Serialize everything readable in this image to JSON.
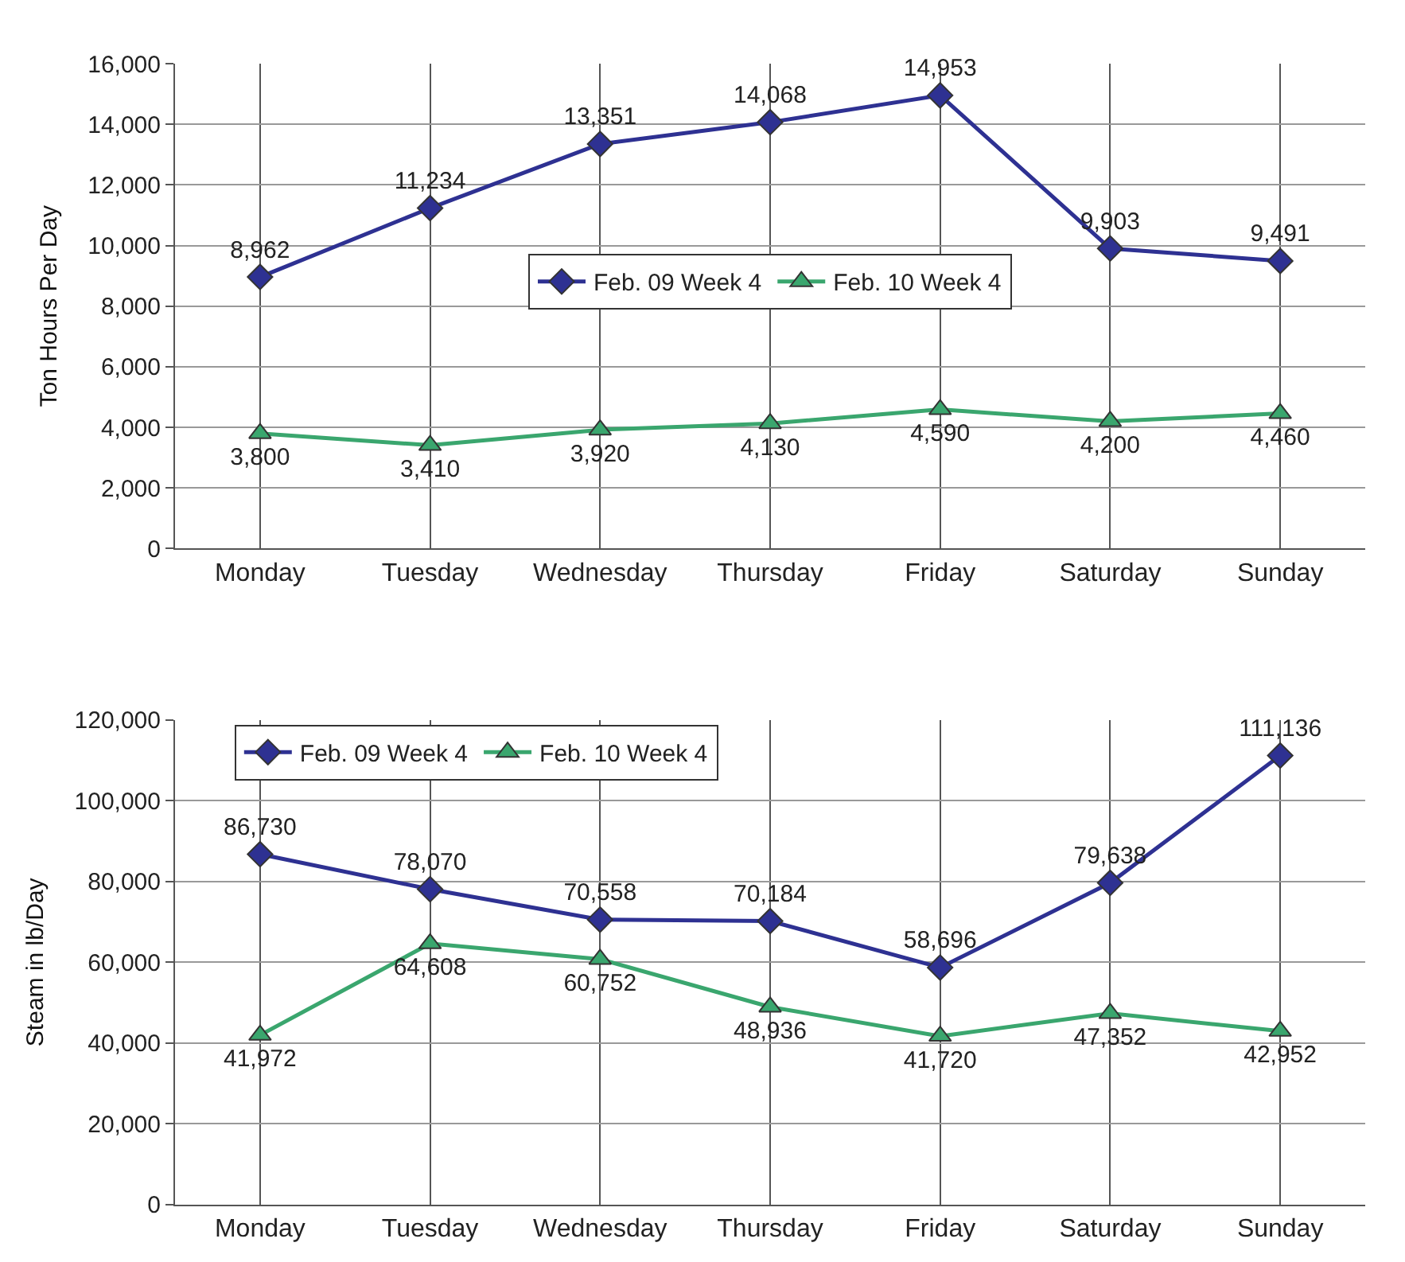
{
  "chart_data": [
    {
      "type": "line",
      "ylabel": "Ton Hours Per Day",
      "categories": [
        "Monday",
        "Tuesday",
        "Wednesday",
        "Thursday",
        "Friday",
        "Saturday",
        "Sunday"
      ],
      "series": [
        {
          "name": "Feb. 09 Week 4",
          "color": "#2e3192",
          "marker": "diamond",
          "values": [
            8962,
            11234,
            13351,
            14068,
            14953,
            9903,
            9491
          ],
          "value_labels": [
            "8,962",
            "11,234",
            "13,351",
            "14,068",
            "14,953",
            "9,903",
            "9,491"
          ]
        },
        {
          "name": "Feb. 10 Week 4",
          "color": "#3aa66e",
          "marker": "triangle",
          "values": [
            3800,
            3410,
            3920,
            4130,
            4590,
            4200,
            4460
          ],
          "value_labels": [
            "3,800",
            "3,410",
            "3,920",
            "4,130",
            "4,590",
            "4,200",
            "4,460"
          ]
        }
      ],
      "ylim": [
        0,
        16000
      ],
      "yticks": [
        {
          "value": 0,
          "label": "0"
        },
        {
          "value": 2000,
          "label": "2,000"
        },
        {
          "value": 4000,
          "label": "4,000"
        },
        {
          "value": 6000,
          "label": "6,000"
        },
        {
          "value": 8000,
          "label": "8,000"
        },
        {
          "value": 10000,
          "label": "10,000"
        },
        {
          "value": 12000,
          "label": "12,000"
        },
        {
          "value": 14000,
          "label": "14,000"
        },
        {
          "value": 16000,
          "label": "16,000"
        }
      ],
      "grid": true,
      "legend": "center",
      "line_style": "solid"
    },
    {
      "type": "line",
      "ylabel": "Steam in lb/Day",
      "categories": [
        "Monday",
        "Tuesday",
        "Wednesday",
        "Thursday",
        "Friday",
        "Saturday",
        "Sunday"
      ],
      "series": [
        {
          "name": "Feb. 09 Week 4",
          "color": "#2e3192",
          "marker": "diamond",
          "values": [
            86730,
            78070,
            70558,
            70184,
            58696,
            79638,
            111136
          ],
          "value_labels": [
            "86,730",
            "78,070",
            "70,558",
            "70,184",
            "58,696",
            "79,638",
            "111,136"
          ]
        },
        {
          "name": "Feb. 10 Week 4",
          "color": "#3aa66e",
          "marker": "triangle",
          "values": [
            41972,
            64608,
            60752,
            48936,
            41720,
            47352,
            42952
          ],
          "value_labels": [
            "41,972",
            "64,608",
            "60,752",
            "48,936",
            "41,720",
            "47,352",
            "42,952"
          ]
        }
      ],
      "ylim": [
        0,
        120000
      ],
      "yticks": [
        {
          "value": 0,
          "label": "0"
        },
        {
          "value": 20000,
          "label": "20,000"
        },
        {
          "value": 40000,
          "label": "40,000"
        },
        {
          "value": 60000,
          "label": "60,000"
        },
        {
          "value": 80000,
          "label": "80,000"
        },
        {
          "value": 100000,
          "label": "100,000"
        },
        {
          "value": 120000,
          "label": "120,000"
        }
      ],
      "grid": true,
      "legend": "top left",
      "line_style": "solid"
    }
  ]
}
